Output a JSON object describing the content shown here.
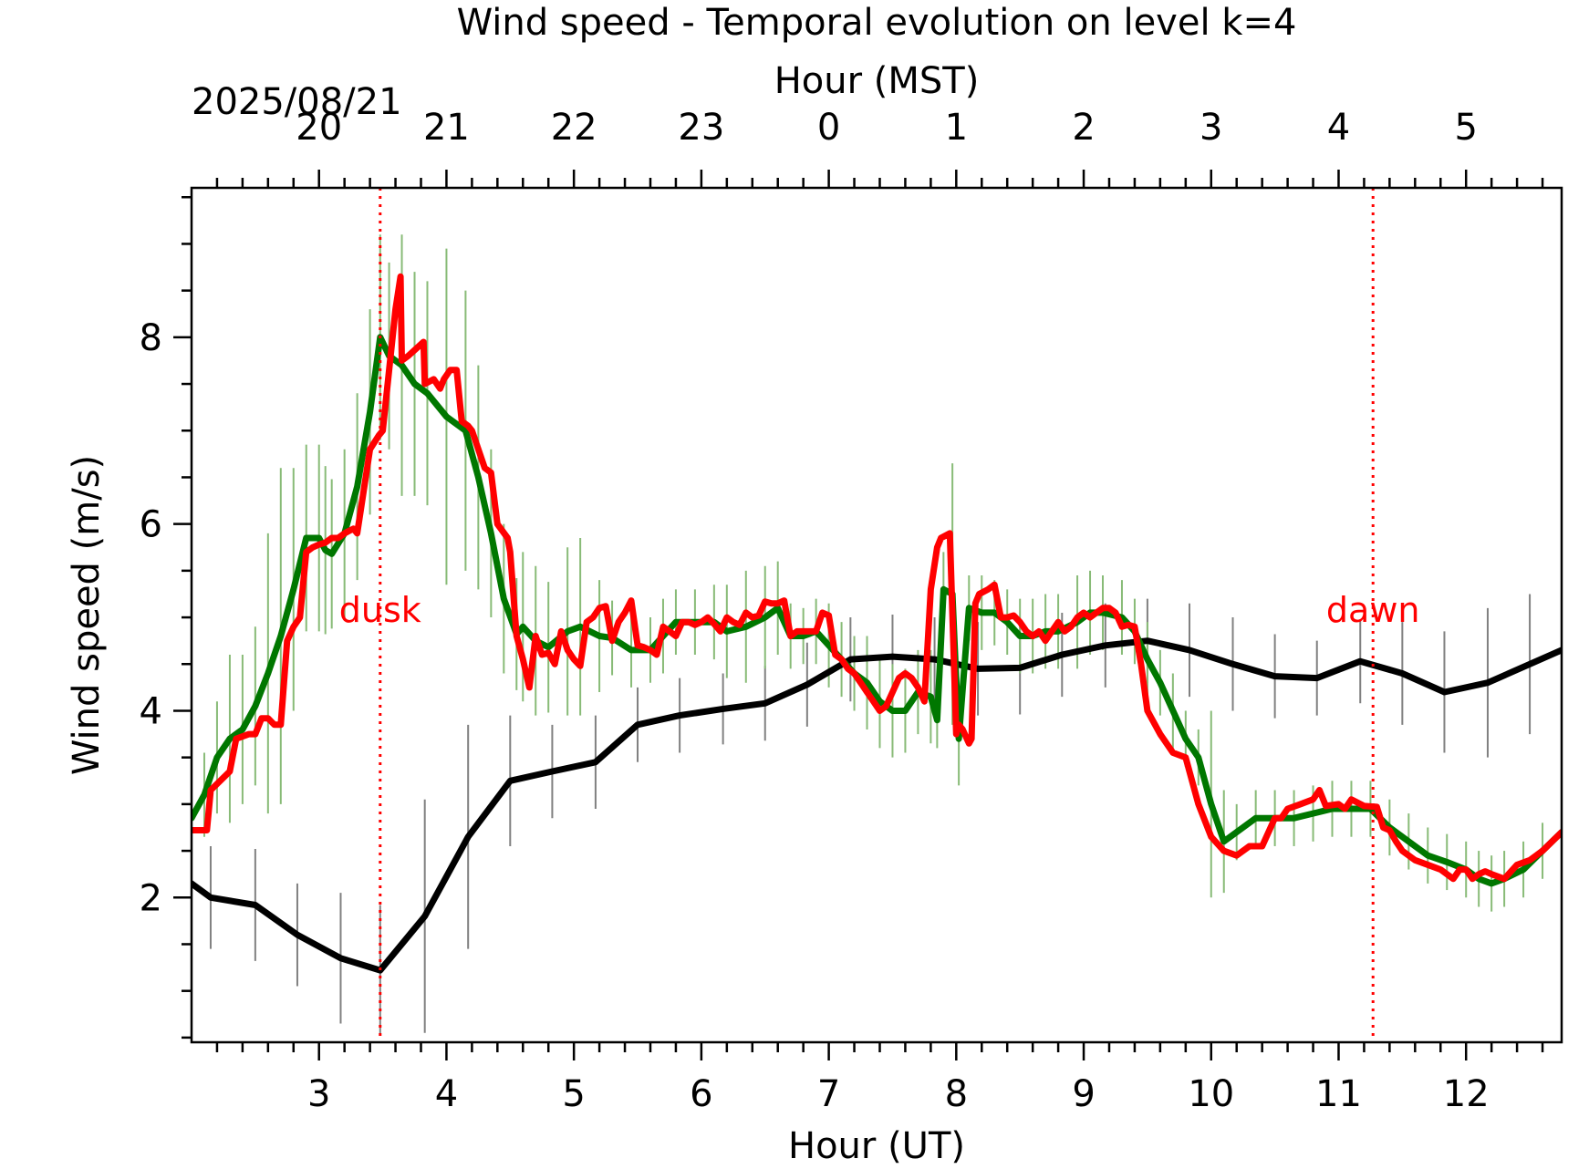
{
  "chart_data": {
    "type": "line",
    "title": "Wind speed - Temporal evolution on level k=4",
    "xlabel": "Hour (UT)",
    "ylabel": "Wind speed (m/s)",
    "top_xlabel": "Hour (MST)",
    "date_label": "2025/08/21",
    "xlim": [
      2.0,
      12.75
    ],
    "ylim": [
      0.45,
      9.6
    ],
    "x_ticks": [
      3,
      4,
      5,
      6,
      7,
      8,
      9,
      10,
      11,
      12
    ],
    "x_tick_labels": [
      "3",
      "4",
      "5",
      "6",
      "7",
      "8",
      "9",
      "10",
      "11",
      "12"
    ],
    "y_ticks": [
      2,
      4,
      6,
      8
    ],
    "y_tick_labels": [
      "2",
      "4",
      "6",
      "8"
    ],
    "top_ticks_ut": [
      3,
      4,
      5,
      6,
      7,
      8,
      9,
      10,
      11,
      12
    ],
    "top_tick_labels": [
      "20",
      "21",
      "22",
      "23",
      "0",
      "1",
      "2",
      "3",
      "4",
      "5"
    ],
    "grid": false,
    "legend": "none",
    "vlines": [
      {
        "x": 3.48,
        "label": "dusk",
        "color": "#ff0000"
      },
      {
        "x": 11.27,
        "label": "dawn",
        "color": "#ff0000"
      }
    ],
    "series": [
      {
        "color": "#000000",
        "errorbar_color": "#808080",
        "x": [
          2.0,
          2.15,
          2.5,
          2.83,
          3.17,
          3.48,
          3.83,
          4.17,
          4.5,
          4.83,
          5.17,
          5.5,
          5.83,
          6.17,
          6.5,
          6.83,
          7.17,
          7.5,
          7.83,
          8.17,
          8.5,
          8.83,
          9.17,
          9.5,
          9.83,
          10.17,
          10.5,
          10.83,
          11.17,
          11.5,
          11.83,
          12.17,
          12.5,
          12.75
        ],
        "y": [
          2.15,
          2.0,
          1.92,
          1.6,
          1.35,
          1.22,
          1.8,
          2.65,
          3.25,
          3.35,
          3.45,
          3.85,
          3.95,
          4.02,
          4.08,
          4.28,
          4.55,
          4.58,
          4.55,
          4.45,
          4.46,
          4.6,
          4.7,
          4.75,
          4.65,
          4.5,
          4.37,
          4.35,
          4.53,
          4.4,
          4.2,
          4.3,
          4.5,
          4.65
        ],
        "yerr": [
          0,
          0.55,
          0.6,
          0.55,
          0.7,
          0.7,
          1.25,
          1.2,
          0.7,
          0.5,
          0.5,
          0.4,
          0.4,
          0.38,
          0.4,
          0.45,
          0.45,
          0.45,
          0.45,
          0.5,
          0.5,
          0.45,
          0.45,
          0.45,
          0.5,
          0.5,
          0.45,
          0.4,
          0.45,
          0.55,
          0.65,
          0.8,
          0.75,
          0
        ]
      },
      {
        "color": "#007700",
        "errorbar_color": "#88bb77",
        "x": [
          2.0,
          2.1,
          2.2,
          2.3,
          2.4,
          2.5,
          2.6,
          2.7,
          2.8,
          2.9,
          3.0,
          3.05,
          3.1,
          3.2,
          3.3,
          3.4,
          3.48,
          3.55,
          3.65,
          3.75,
          3.85,
          4.0,
          4.15,
          4.25,
          4.35,
          4.45,
          4.55,
          4.6,
          4.7,
          4.8,
          4.95,
          5.05,
          5.2,
          5.3,
          5.45,
          5.6,
          5.7,
          5.8,
          5.95,
          6.1,
          6.2,
          6.35,
          6.5,
          6.6,
          6.7,
          6.8,
          6.9,
          7.0,
          7.1,
          7.2,
          7.3,
          7.4,
          7.5,
          7.6,
          7.7,
          7.8,
          7.85,
          7.9,
          7.97,
          8.02,
          8.1,
          8.2,
          8.3,
          8.4,
          8.5,
          8.6,
          8.7,
          8.8,
          8.95,
          9.05,
          9.15,
          9.3,
          9.4,
          9.5,
          9.6,
          9.7,
          9.8,
          9.9,
          10.0,
          10.1,
          10.2,
          10.35,
          10.5,
          10.65,
          10.8,
          10.95,
          11.1,
          11.25,
          11.4,
          11.55,
          11.7,
          11.85,
          12.0,
          12.1,
          12.2,
          12.3,
          12.45,
          12.6,
          12.75
        ],
        "y": [
          2.85,
          3.1,
          3.5,
          3.7,
          3.8,
          4.05,
          4.4,
          4.8,
          5.3,
          5.85,
          5.85,
          5.72,
          5.68,
          5.9,
          6.4,
          7.2,
          8.0,
          7.8,
          7.7,
          7.5,
          7.4,
          7.15,
          7.0,
          6.5,
          5.9,
          5.2,
          4.82,
          4.9,
          4.75,
          4.68,
          4.85,
          4.9,
          4.8,
          4.78,
          4.65,
          4.65,
          4.8,
          4.95,
          4.95,
          4.95,
          4.85,
          4.9,
          5.0,
          5.1,
          4.8,
          4.8,
          4.85,
          4.7,
          4.55,
          4.4,
          4.3,
          4.1,
          4.0,
          4.0,
          4.2,
          4.15,
          3.9,
          5.3,
          5.25,
          3.7,
          5.1,
          5.05,
          5.05,
          4.95,
          4.8,
          4.8,
          4.85,
          4.85,
          4.95,
          5.05,
          5.05,
          5.0,
          4.85,
          4.55,
          4.3,
          4.0,
          3.7,
          3.5,
          3.0,
          2.6,
          2.7,
          2.85,
          2.85,
          2.85,
          2.9,
          2.95,
          2.95,
          2.95,
          2.75,
          2.6,
          2.45,
          2.38,
          2.3,
          2.2,
          2.15,
          2.2,
          2.3,
          2.5,
          2.7
        ],
        "yerr": [
          0,
          0.45,
          0.6,
          0.9,
          0.8,
          0.85,
          1.5,
          1.8,
          1.3,
          1.0,
          1.0,
          0.9,
          0.8,
          0.9,
          1.0,
          1.1,
          1.1,
          1.0,
          1.4,
          1.2,
          1.2,
          1.8,
          1.5,
          1.2,
          0.9,
          0.8,
          0.6,
          0.8,
          0.8,
          0.7,
          0.9,
          0.95,
          0.6,
          0.4,
          0.4,
          0.35,
          0.4,
          0.35,
          0.35,
          0.4,
          0.5,
          0.6,
          0.55,
          0.5,
          0.35,
          0.3,
          0.35,
          0.45,
          0.4,
          0.4,
          0.5,
          0.5,
          0.5,
          0.45,
          0.45,
          0.5,
          0.3,
          0.4,
          1.4,
          0.5,
          0.35,
          0.4,
          0.35,
          0.35,
          0.4,
          0.4,
          0.4,
          0.4,
          0.5,
          0.45,
          0.4,
          0.4,
          0.35,
          0.4,
          0.35,
          0.4,
          0.3,
          0.3,
          1.0,
          0.55,
          0.3,
          0.3,
          0.3,
          0.3,
          0.3,
          0.3,
          0.3,
          0.3,
          0.3,
          0.3,
          0.3,
          0.3,
          0.3,
          0.3,
          0.3,
          0.3,
          0.3,
          0.3,
          0
        ]
      },
      {
        "color": "#ff0000",
        "errorbar_color": "#ff5555",
        "x": [
          2.0,
          2.12,
          2.15,
          2.3,
          2.35,
          2.45,
          2.5,
          2.55,
          2.6,
          2.65,
          2.7,
          2.75,
          2.8,
          2.85,
          2.9,
          2.95,
          3.0,
          3.05,
          3.1,
          3.15,
          3.2,
          3.27,
          3.3,
          3.4,
          3.47,
          3.5,
          3.6,
          3.64,
          3.65,
          3.7,
          3.78,
          3.82,
          3.83,
          3.9,
          3.95,
          3.98,
          4.03,
          4.08,
          4.12,
          4.17,
          4.2,
          4.3,
          4.35,
          4.4,
          4.48,
          4.5,
          4.55,
          4.6,
          4.65,
          4.7,
          4.75,
          4.8,
          4.85,
          4.9,
          4.95,
          5.0,
          5.05,
          5.1,
          5.15,
          5.2,
          5.25,
          5.3,
          5.35,
          5.4,
          5.45,
          5.5,
          5.55,
          5.6,
          5.65,
          5.7,
          5.75,
          5.8,
          5.85,
          5.9,
          5.95,
          6.0,
          6.05,
          6.1,
          6.15,
          6.2,
          6.25,
          6.3,
          6.35,
          6.4,
          6.45,
          6.5,
          6.55,
          6.6,
          6.65,
          6.7,
          6.75,
          6.8,
          6.85,
          6.9,
          6.95,
          7.0,
          7.05,
          7.1,
          7.15,
          7.2,
          7.25,
          7.3,
          7.35,
          7.4,
          7.45,
          7.5,
          7.55,
          7.6,
          7.65,
          7.7,
          7.75,
          7.8,
          7.85,
          7.88,
          7.95,
          8.0,
          8.02,
          8.05,
          8.1,
          8.12,
          8.15,
          8.18,
          8.25,
          8.3,
          8.35,
          8.4,
          8.45,
          8.5,
          8.55,
          8.6,
          8.65,
          8.7,
          8.75,
          8.8,
          8.85,
          8.9,
          8.95,
          9.0,
          9.05,
          9.1,
          9.15,
          9.2,
          9.25,
          9.3,
          9.35,
          9.4,
          9.45,
          9.5,
          9.6,
          9.7,
          9.8,
          9.9,
          10.0,
          10.1,
          10.2,
          10.3,
          10.4,
          10.5,
          10.55,
          10.6,
          10.7,
          10.8,
          10.85,
          10.9,
          11.0,
          11.05,
          11.1,
          11.2,
          11.3,
          11.35,
          11.4,
          11.45,
          11.5,
          11.55,
          11.6,
          11.7,
          11.8,
          11.9,
          11.95,
          12.0,
          12.05,
          12.1,
          12.15,
          12.2,
          12.3,
          12.4,
          12.5,
          12.55,
          12.6,
          12.75
        ],
        "y": [
          2.72,
          2.72,
          3.15,
          3.35,
          3.7,
          3.75,
          3.75,
          3.92,
          3.92,
          3.85,
          3.85,
          4.75,
          4.9,
          5.0,
          5.7,
          5.75,
          5.78,
          5.8,
          5.85,
          5.85,
          5.9,
          5.95,
          5.9,
          6.8,
          6.95,
          7.0,
          8.3,
          8.65,
          7.75,
          7.8,
          7.9,
          7.95,
          7.5,
          7.55,
          7.45,
          7.55,
          7.65,
          7.65,
          7.1,
          7.05,
          7.0,
          6.6,
          6.55,
          6.0,
          5.85,
          5.7,
          4.8,
          4.55,
          4.25,
          4.8,
          4.6,
          4.62,
          4.5,
          4.85,
          4.65,
          4.55,
          4.48,
          4.95,
          5.0,
          5.1,
          5.12,
          4.75,
          4.95,
          5.05,
          5.18,
          4.7,
          4.68,
          4.65,
          4.6,
          4.9,
          4.85,
          4.8,
          4.95,
          4.95,
          4.92,
          4.95,
          5.0,
          4.93,
          4.85,
          5.0,
          4.95,
          4.92,
          5.05,
          5.0,
          5.02,
          5.17,
          5.15,
          5.15,
          5.18,
          4.8,
          4.85,
          4.85,
          4.85,
          4.85,
          5.05,
          5.02,
          4.6,
          4.55,
          4.45,
          4.4,
          4.3,
          4.2,
          4.1,
          4.0,
          4.05,
          4.2,
          4.35,
          4.4,
          4.35,
          4.25,
          4.1,
          5.3,
          5.75,
          5.85,
          5.9,
          3.75,
          3.85,
          3.8,
          3.65,
          3.7,
          5.15,
          5.25,
          5.3,
          5.35,
          5.0,
          5.0,
          5.02,
          4.95,
          4.85,
          4.8,
          4.85,
          4.75,
          4.85,
          4.95,
          4.85,
          4.9,
          5.0,
          5.05,
          5.0,
          5.05,
          5.1,
          5.1,
          5.05,
          4.9,
          4.92,
          4.9,
          4.5,
          4.0,
          3.75,
          3.55,
          3.5,
          3.0,
          2.65,
          2.5,
          2.45,
          2.55,
          2.55,
          2.85,
          2.85,
          2.95,
          3.0,
          3.05,
          3.15,
          2.98,
          3.0,
          2.95,
          3.05,
          2.98,
          2.97,
          2.75,
          2.72,
          2.6,
          2.5,
          2.45,
          2.4,
          2.35,
          2.3,
          2.2,
          2.3,
          2.3,
          2.2,
          2.25,
          2.28,
          2.25,
          2.2,
          2.35,
          2.4,
          2.45,
          2.5,
          2.7
        ]
      }
    ]
  }
}
